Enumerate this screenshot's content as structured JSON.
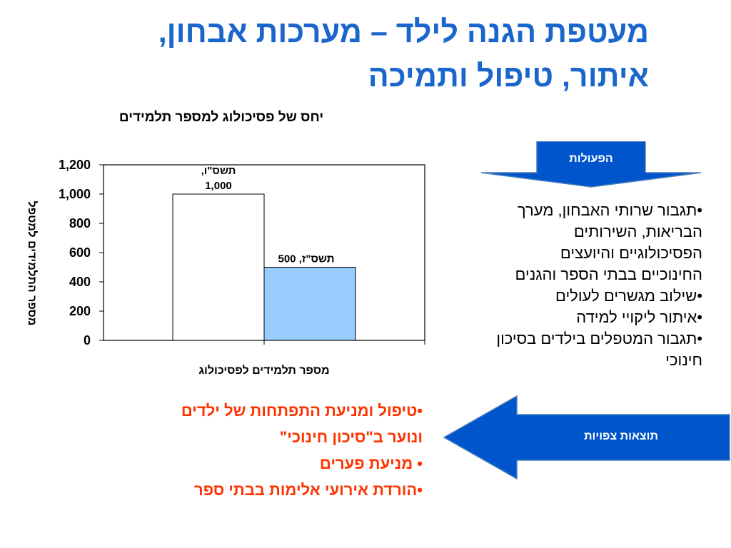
{
  "title": {
    "line1": "מעטפת הגנה לילד – מערכות אבחון,",
    "line2": "איתור, טיפול ותמיכה"
  },
  "chart_data": {
    "type": "bar",
    "title": "יחס של פסיכולוג למספר תלמידים",
    "ylabel": "מספר התלמידים למטפל",
    "xlabel": "מספר תלמידים לפסיכולוג",
    "ylim": [
      0,
      1200
    ],
    "yticks": [
      0,
      200,
      400,
      600,
      800,
      1000,
      1200
    ],
    "ytick_labels": [
      "0",
      "200",
      "400",
      "600",
      "800",
      "1,000",
      "1,200"
    ],
    "categories": [
      "תשס\"ו",
      "תשס\"ז"
    ],
    "values": [
      1000,
      500
    ],
    "data_labels": [
      "תשס\"ו,\n1,000",
      "תשס\"ז, 500"
    ],
    "bar_colors": [
      "#ffffff",
      "#99ccff"
    ],
    "grid": false
  },
  "actions": {
    "label": "הפעולות",
    "items": [
      "•תגבור שרותי האבחון, מערך",
      "הבריאות, השירותים",
      "הפסיכולוגיים והיועצים",
      "החינוכיים בבתי הספר והגנים",
      "•שילוב מגשרים לעולים",
      "•איתור ליקויי למידה",
      "•תגבור המטפלים בילדים בסיכון",
      "חינוכי"
    ]
  },
  "outcomes": {
    "label": "תוצאות צפויות",
    "items": [
      "•טיפול ומניעת התפתחות של ילדים",
      "ונוער ב\"סיכון חינוכי\"",
      "• מניעת פערים",
      "•הורדת אירועי אלימות בבתי ספר"
    ]
  },
  "colors": {
    "title": "#1a66cc",
    "arrow_fill": "#0055cc",
    "outcomes_text": "#ff3300"
  }
}
